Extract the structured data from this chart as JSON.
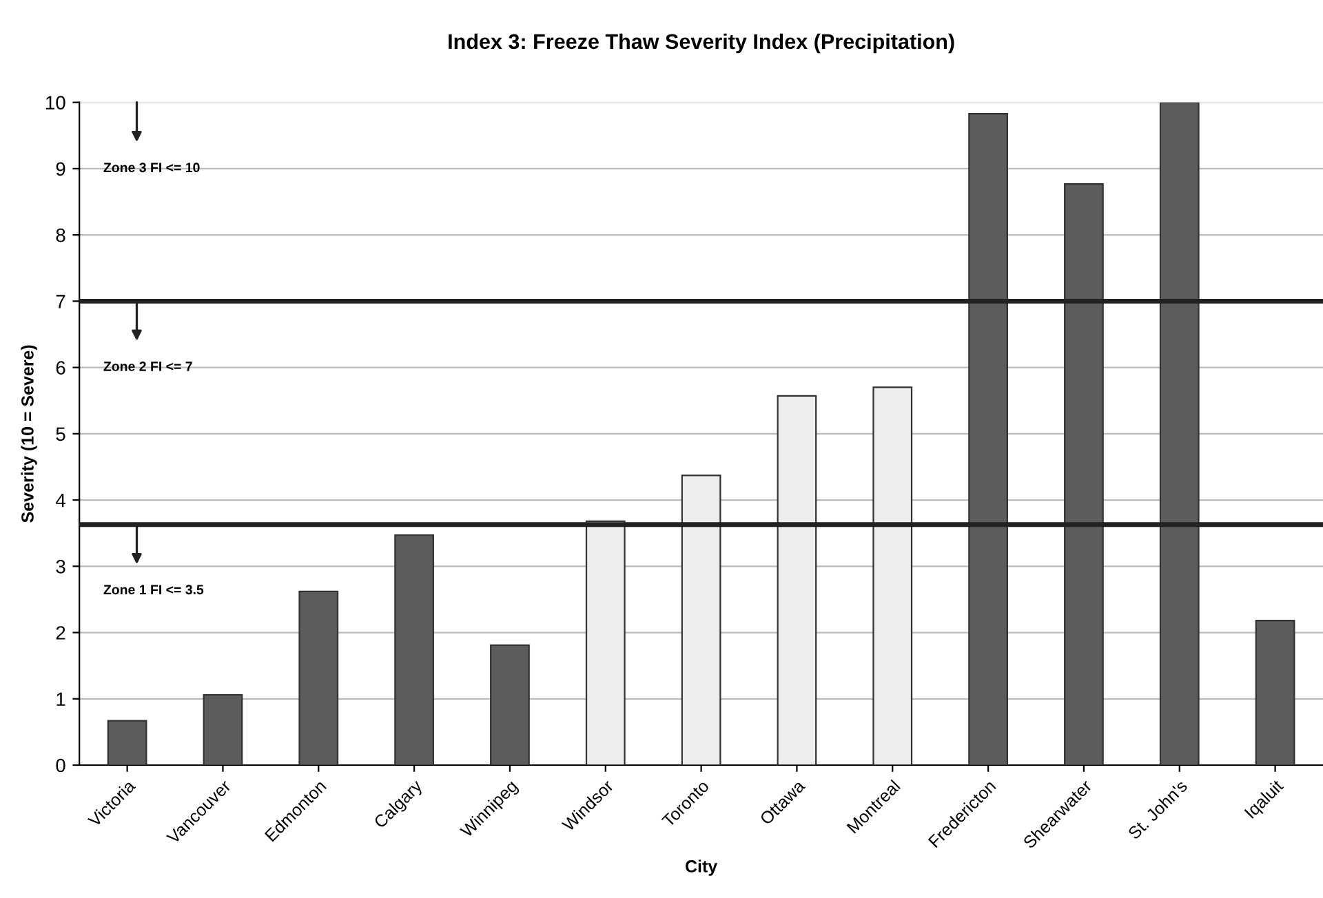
{
  "chart_data": {
    "type": "bar",
    "title": "Index 3: Freeze Thaw Severity Index (Precipitation)",
    "xlabel": "City",
    "ylabel": "Severity (10 = Severe)",
    "categories": [
      "Victoria",
      "Vancouver",
      "Edmonton",
      "Calgary",
      "Winnipeg",
      "Windsor",
      "Toronto",
      "Ottawa",
      "Montreal",
      "Fredericton",
      "Shearwater",
      "St. John's",
      "Iqaluit"
    ],
    "values": [
      0.67,
      1.06,
      2.62,
      3.47,
      1.81,
      3.68,
      4.37,
      5.57,
      5.7,
      9.83,
      8.77,
      10.0,
      2.18
    ],
    "colors": [
      "#5c5c5c",
      "#5c5c5c",
      "#5c5c5c",
      "#5c5c5c",
      "#5c5c5c",
      "#ededed",
      "#ededed",
      "#ededed",
      "#ededed",
      "#5c5c5c",
      "#5c5c5c",
      "#5c5c5c",
      "#5c5c5c"
    ],
    "ylim": [
      0,
      10
    ],
    "yticks": [
      0,
      1,
      2,
      3,
      4,
      5,
      6,
      7,
      8,
      9,
      10
    ],
    "grid": "y",
    "ref_lines": [
      {
        "axis": "y",
        "value": 7,
        "color": "#222222"
      },
      {
        "axis": "y",
        "value": 3.63,
        "color": "#222222"
      }
    ],
    "annotations": [
      "Zone 3 FI <= 10",
      "Zone 2 FI <= 7",
      "Zone 1 FI <= 3.5"
    ]
  }
}
